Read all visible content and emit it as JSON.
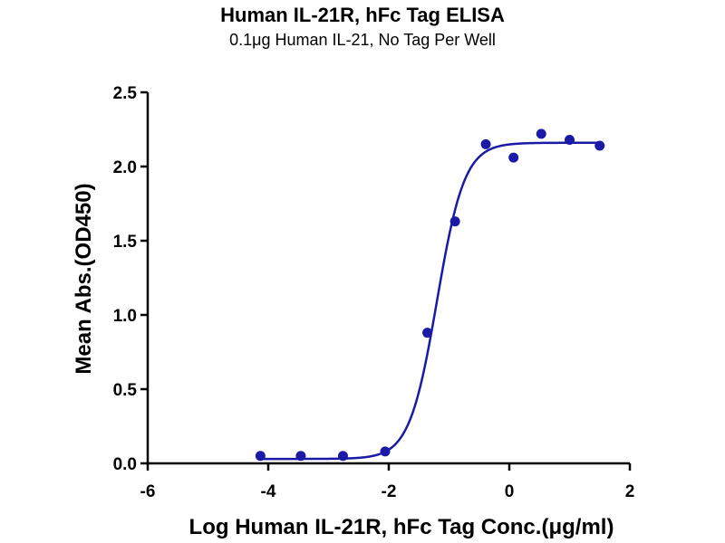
{
  "chart_data": {
    "type": "scatter",
    "title": "Human IL-21R, hFc Tag ELISA",
    "subtitle": "0.1μg Human IL-21, No Tag Per Well",
    "xlabel": "Log Human IL-21R, hFc Tag Conc.(μg/ml)",
    "ylabel": "Mean Abs.(OD450)",
    "xlim": [
      -6,
      2
    ],
    "ylim": [
      0,
      2.5
    ],
    "xticks": [
      -6,
      -4,
      -2,
      0,
      2
    ],
    "yticks": [
      0.0,
      0.5,
      1.0,
      1.5,
      2.0,
      2.5
    ],
    "xtick_labels": [
      "-6",
      "-4",
      "-2",
      "0",
      "2"
    ],
    "ytick_labels": [
      "0.0",
      "0.5",
      "1.0",
      "1.5",
      "2.0",
      "2.5"
    ],
    "grid": false,
    "series": [
      {
        "color": "#1a1aa6",
        "x": [
          -4.13,
          -3.46,
          -2.76,
          -2.06,
          -1.36,
          -0.9,
          -0.39,
          0.07,
          0.53,
          1.0,
          1.5
        ],
        "y": [
          0.05,
          0.05,
          0.05,
          0.08,
          0.88,
          1.63,
          2.15,
          2.06,
          2.22,
          2.18,
          2.14
        ]
      }
    ],
    "fit_curve": {
      "model": "4PL",
      "bottom": 0.03,
      "top": 2.16,
      "logEC50": -1.2,
      "hill_slope": 1.9,
      "color": "#1a1aa6"
    }
  }
}
